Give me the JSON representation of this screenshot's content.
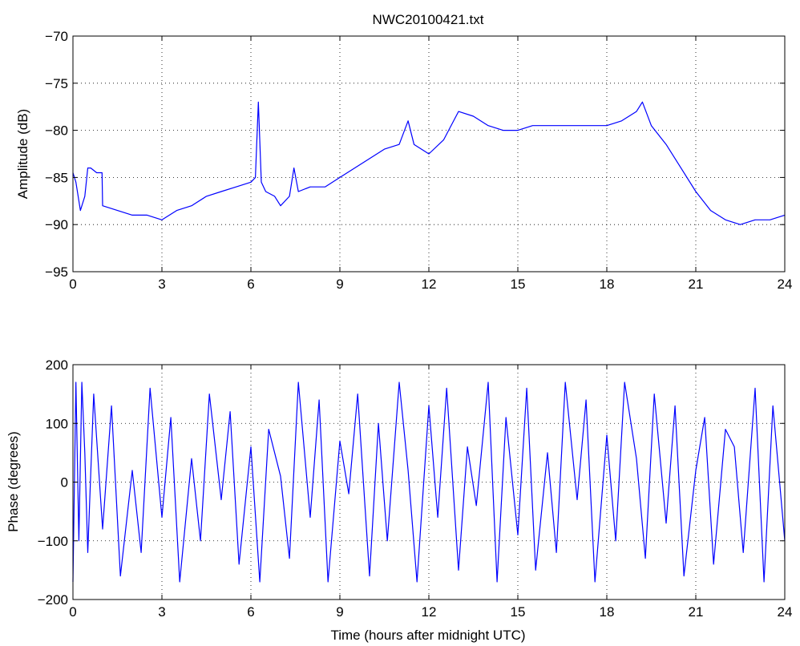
{
  "chart_data": [
    {
      "type": "line",
      "title": "NWC20100421.txt",
      "xlabel": "",
      "ylabel": "Amplitude (dB)",
      "xlim": [
        0,
        24
      ],
      "ylim": [
        -95,
        -70
      ],
      "xticks": [
        0,
        3,
        6,
        9,
        12,
        15,
        18,
        21,
        24
      ],
      "yticks": [
        -95,
        -90,
        -85,
        -80,
        -75,
        -70
      ],
      "grid": true,
      "series": [
        {
          "color": "#0000ff",
          "x": [
            0,
            0.1,
            0.25,
            0.4,
            0.5,
            0.6,
            0.8,
            0.98,
            1.0,
            1.5,
            2.0,
            2.5,
            3.0,
            3.5,
            4.0,
            4.5,
            5.0,
            5.5,
            6.0,
            6.15,
            6.25,
            6.35,
            6.5,
            6.8,
            7.0,
            7.3,
            7.45,
            7.6,
            8.0,
            8.5,
            9.0,
            9.5,
            10.0,
            10.5,
            11.0,
            11.3,
            11.5,
            12.0,
            12.5,
            13.0,
            13.5,
            14.0,
            14.5,
            15.0,
            15.5,
            16.0,
            16.5,
            17.0,
            17.5,
            18.0,
            18.5,
            19.0,
            19.2,
            19.5,
            20.0,
            20.5,
            21.0,
            21.5,
            22.0,
            22.5,
            23.0,
            23.5,
            24.0
          ],
          "y": [
            -84.5,
            -85.5,
            -88.5,
            -87,
            -84,
            -84,
            -84.5,
            -84.5,
            -88,
            -88.5,
            -89,
            -89,
            -89.5,
            -88.5,
            -88,
            -87,
            -86.5,
            -86,
            -85.5,
            -85,
            -77,
            -85.5,
            -86.5,
            -87,
            -88,
            -87,
            -84,
            -86.5,
            -86,
            -86,
            -85,
            -84,
            -83,
            -82,
            -81.5,
            -79,
            -81.5,
            -82.5,
            -81,
            -78,
            -78.5,
            -79.5,
            -80,
            -80,
            -79.5,
            -79.5,
            -79.5,
            -79.5,
            -79.5,
            -79.5,
            -79,
            -78,
            -77,
            -79.5,
            -81.5,
            -84,
            -86.5,
            -88.5,
            -89.5,
            -90,
            -89.5,
            -89.5,
            -89
          ]
        }
      ]
    },
    {
      "type": "line",
      "title": "",
      "xlabel": "Time (hours after midnight UTC)",
      "ylabel": "Phase (degrees)",
      "xlim": [
        0,
        24
      ],
      "ylim": [
        -200,
        200
      ],
      "xticks": [
        0,
        3,
        6,
        9,
        12,
        15,
        18,
        21,
        24
      ],
      "yticks": [
        -200,
        -100,
        0,
        100,
        200
      ],
      "grid": true,
      "series": [
        {
          "color": "#0000ff",
          "x": [
            0,
            0.1,
            0.2,
            0.3,
            0.4,
            0.5,
            0.7,
            1.0,
            1.3,
            1.6,
            2.0,
            2.3,
            2.6,
            3.0,
            3.3,
            3.6,
            4.0,
            4.3,
            4.6,
            5.0,
            5.3,
            5.6,
            6.0,
            6.3,
            6.6,
            7.0,
            7.3,
            7.6,
            8.0,
            8.3,
            8.6,
            9.0,
            9.3,
            9.6,
            10.0,
            10.3,
            10.6,
            11.0,
            11.3,
            11.6,
            12.0,
            12.3,
            12.6,
            13.0,
            13.3,
            13.6,
            14.0,
            14.3,
            14.6,
            15.0,
            15.3,
            15.6,
            16.0,
            16.3,
            16.6,
            17.0,
            17.3,
            17.6,
            18.0,
            18.3,
            18.6,
            19.0,
            19.3,
            19.6,
            20.0,
            20.3,
            20.6,
            21.0,
            21.3,
            21.6,
            22.0,
            22.3,
            22.6,
            23.0,
            23.3,
            23.6,
            24.0
          ],
          "y": [
            -170,
            170,
            -100,
            170,
            50,
            -120,
            150,
            -80,
            130,
            -160,
            20,
            -120,
            160,
            -60,
            110,
            -170,
            40,
            -100,
            150,
            -30,
            120,
            -140,
            60,
            -170,
            90,
            10,
            -130,
            170,
            -60,
            140,
            -170,
            70,
            -20,
            150,
            -160,
            100,
            -100,
            170,
            20,
            -170,
            130,
            -60,
            160,
            -150,
            60,
            -40,
            170,
            -170,
            110,
            -90,
            160,
            -150,
            50,
            -120,
            170,
            -30,
            140,
            -170,
            80,
            -100,
            170,
            40,
            -130,
            150,
            -70,
            130,
            -160,
            20,
            110,
            -140,
            90,
            60,
            -120,
            160,
            -170,
            130,
            -100
          ]
        }
      ]
    }
  ]
}
